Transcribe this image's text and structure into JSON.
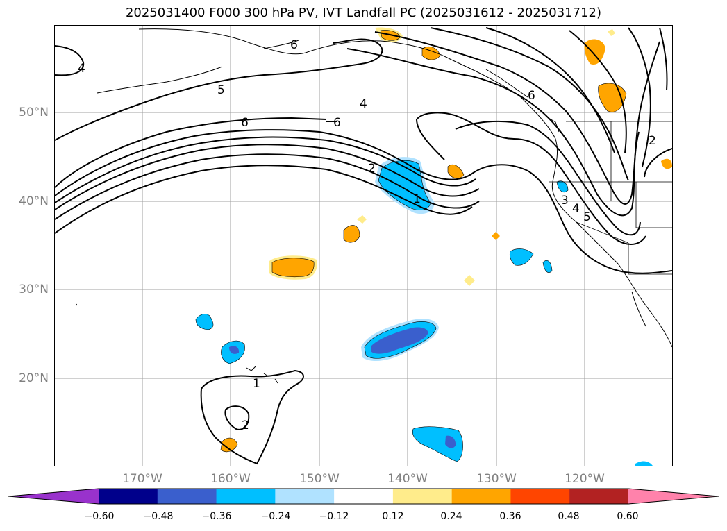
{
  "title": "2025031400 F000 300 hPa PV, IVT Landfall PC (2025031612 - 2025031712)",
  "lat_labels": [
    "50°N",
    "40°N",
    "30°N",
    "20°N"
  ],
  "lon_labels": [
    "170°W",
    "160°W",
    "150°W",
    "140°W",
    "130°W",
    "120°W"
  ],
  "contour_labels": [
    "4",
    "5",
    "4",
    "6",
    "6",
    "6",
    "2",
    "1",
    "1",
    "2",
    "2",
    "3",
    "4",
    "5",
    "6"
  ],
  "colorbar": {
    "colors": [
      "#9932cc",
      "#00008b",
      "#3a5fcd",
      "#00bfff",
      "#b0e2ff",
      "#ffffff",
      "#ffec8b",
      "#ffa500",
      "#ff4500",
      "#b22222",
      "#ff82ab"
    ],
    "ticks": [
      "−0.60",
      "−0.48",
      "−0.36",
      "−0.24",
      "−0.12",
      "0.12",
      "0.24",
      "0.36",
      "0.48",
      "0.60"
    ]
  },
  "colors": {
    "coast": "#000000",
    "grid": "#a0a0a0",
    "label": "#808080"
  }
}
